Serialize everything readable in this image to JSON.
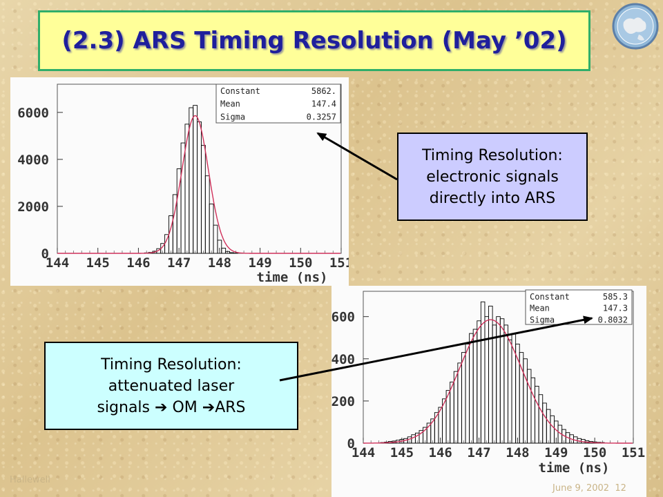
{
  "slide": {
    "title": "(2.3) ARS Timing Resolution (May ’02)",
    "footer_left": "Hallewell",
    "footer_right": "June 9, 2002",
    "page_number": "12"
  },
  "callouts": {
    "top": {
      "line1": "Timing Resolution:",
      "line2": "electronic signals",
      "line3": "directly into ARS"
    },
    "bottom": {
      "line1": "Timing Resolution:",
      "line2": "attenuated laser",
      "line3_a": "signals",
      "line3_b": "OM",
      "line3_c": "ARS",
      "arrow_glyph": "➔"
    }
  },
  "colors": {
    "title_text": "#1f1f9c",
    "title_bg": "#ffff99",
    "title_border": "#2fae6a",
    "callout_top_bg": "#ccccff",
    "callout_bottom_bg": "#ccffff",
    "fit_curve": "#d0305a",
    "histogram": "#000000"
  },
  "chart_data": [
    {
      "type": "histogram",
      "xlabel": "time (ns)",
      "xlim": [
        144,
        151
      ],
      "ylim": [
        0,
        7200
      ],
      "x_ticks": [
        144,
        145,
        146,
        147,
        148,
        149,
        150,
        151
      ],
      "y_ticks": [
        0,
        2000,
        4000,
        6000
      ],
      "stats": [
        {
          "label": "Constant",
          "value": "5862."
        },
        {
          "label": "Mean",
          "value": "147.4"
        },
        {
          "label": "Sigma",
          "value": "0.3257"
        }
      ],
      "fit": {
        "constant": 5862,
        "mean": 147.4,
        "sigma": 0.3257
      },
      "bin_width": 0.1,
      "bins_x": [
        146.2,
        146.3,
        146.4,
        146.5,
        146.6,
        146.7,
        146.8,
        146.9,
        147.0,
        147.1,
        147.2,
        147.3,
        147.4,
        147.5,
        147.6,
        147.7,
        147.8,
        147.9,
        148.0,
        148.1,
        148.2,
        148.3,
        148.4
      ],
      "bins_y": [
        20,
        40,
        90,
        200,
        420,
        800,
        1600,
        2500,
        3600,
        4700,
        5500,
        6200,
        6300,
        5600,
        4600,
        3300,
        2100,
        1200,
        560,
        220,
        80,
        30,
        10
      ]
    },
    {
      "type": "histogram",
      "xlabel": "time (ns)",
      "xlim": [
        144,
        151
      ],
      "ylim": [
        0,
        720
      ],
      "x_ticks": [
        144,
        145,
        146,
        147,
        148,
        149,
        150,
        151
      ],
      "y_ticks": [
        0,
        200,
        400,
        600
      ],
      "stats": [
        {
          "label": "Constant",
          "value": "585.3"
        },
        {
          "label": "Mean",
          "value": "147.3"
        },
        {
          "label": "Sigma",
          "value": "0.8032"
        }
      ],
      "fit": {
        "constant": 585.3,
        "mean": 147.3,
        "sigma": 0.8032
      },
      "bin_width": 0.1,
      "bins_x": [
        144.5,
        144.6,
        144.7,
        144.8,
        144.9,
        145.0,
        145.1,
        145.2,
        145.3,
        145.4,
        145.5,
        145.6,
        145.7,
        145.8,
        145.9,
        146.0,
        146.1,
        146.2,
        146.3,
        146.4,
        146.5,
        146.6,
        146.7,
        146.8,
        146.9,
        147.0,
        147.1,
        147.2,
        147.3,
        147.4,
        147.5,
        147.6,
        147.7,
        147.8,
        147.9,
        148.0,
        148.1,
        148.2,
        148.3,
        148.4,
        148.5,
        148.6,
        148.7,
        148.8,
        148.9,
        149.0,
        149.1,
        149.2,
        149.3,
        149.4,
        149.5,
        149.6,
        149.7,
        149.8,
        149.9,
        150.0,
        150.1,
        150.2
      ],
      "bins_y": [
        3,
        5,
        8,
        10,
        14,
        18,
        22,
        30,
        40,
        48,
        60,
        75,
        95,
        115,
        145,
        170,
        210,
        250,
        290,
        340,
        380,
        430,
        470,
        520,
        540,
        580,
        670,
        600,
        650,
        560,
        600,
        590,
        560,
        490,
        520,
        470,
        430,
        400,
        350,
        310,
        270,
        230,
        190,
        160,
        130,
        105,
        85,
        65,
        50,
        40,
        30,
        22,
        18,
        12,
        8,
        6,
        4,
        3
      ]
    }
  ]
}
